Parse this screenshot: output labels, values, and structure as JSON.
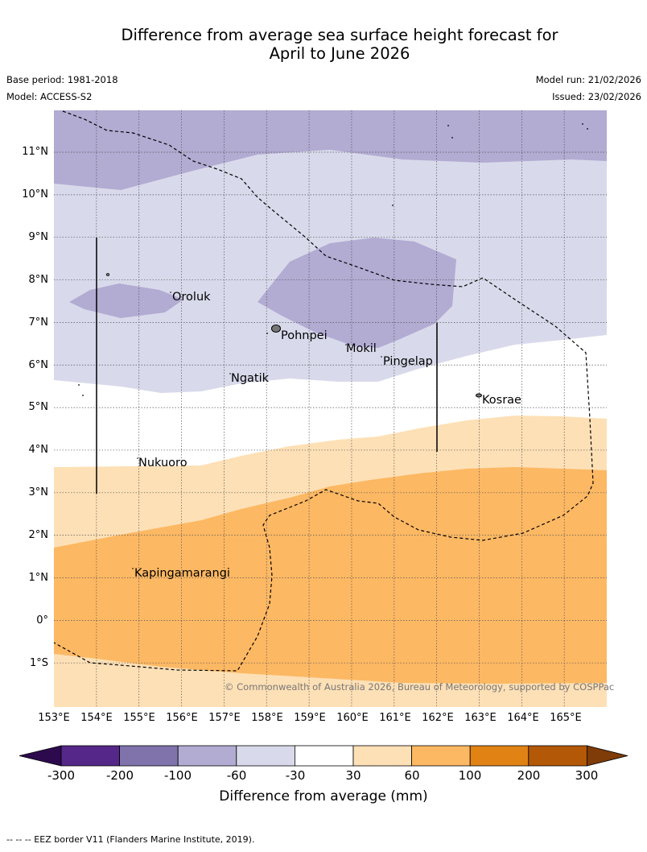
{
  "title_line1": "Difference from average sea surface height forecast for",
  "title_line2": "April to June 2026",
  "base_period": "Base period: 1981-2018",
  "model": "Model: ACCESS-S2",
  "model_run": "Model run: 21/02/2026",
  "issued": "Issued: 23/02/2026",
  "lat_labels": [
    "11°N",
    "10°N",
    "9°N",
    "8°N",
    "7°N",
    "6°N",
    "5°N",
    "4°N",
    "3°N",
    "2°N",
    "1°N",
    "0°",
    "1°S"
  ],
  "lon_labels": [
    "153°E",
    "154°E",
    "155°E",
    "156°E",
    "157°E",
    "158°E",
    "159°E",
    "160°E",
    "161°E",
    "162°E",
    "163°E",
    "164°E",
    "165°E"
  ],
  "places": {
    "oroluk": "Oroluk",
    "pohnpei": "Pohnpei",
    "mokil": "Mokil",
    "pingelap": "Pingelap",
    "ngatik": "Ngatik",
    "kosrae": "Kosrae",
    "nukuoro": "Nukuoro",
    "kapingamarangi": "Kapingamarangi"
  },
  "credit": "© Commonwealth of Australia 2026, Bureau of Meteorology, supported by COSPPac",
  "colorbar": {
    "ticks": [
      "-300",
      "-200",
      "-100",
      "-60",
      "-30",
      "30",
      "60",
      "100",
      "200",
      "300"
    ],
    "colors": [
      "#2d0a4e",
      "#542788",
      "#8073ac",
      "#b2abd2",
      "#d8daeb",
      "#ffffff",
      "#fee0b6",
      "#fdb863",
      "#e08214",
      "#b35806",
      "#7f3b08"
    ],
    "label": "Difference from average (mm)"
  },
  "footnote": "--  --  -- EEZ border V11 (Flanders Marine Institute, 2019)."
}
